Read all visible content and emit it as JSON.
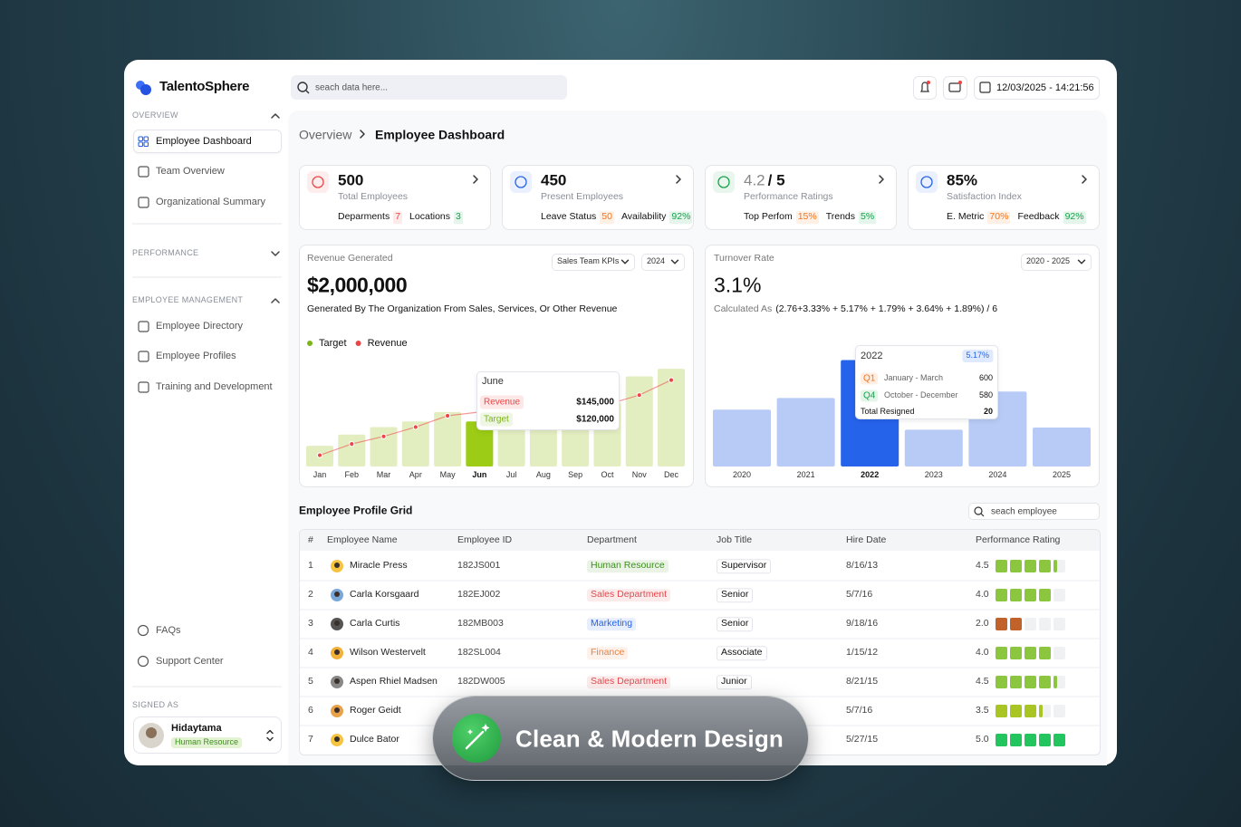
{
  "app": {
    "logo": "TalentoSphere",
    "search_placeholder": "seach data here...",
    "datetime": "12/03/2025 - 14:21:56"
  },
  "sidebar": {
    "sections": [
      {
        "title": "OVERVIEW",
        "items": [
          "Employee Dashboard",
          "Team Overview",
          "Organizational Summary"
        ]
      },
      {
        "title": "PERFORMANCE"
      },
      {
        "title": "EMPLOYEE MANAGEMENT",
        "items": [
          "Employee Directory",
          "Employee Profiles",
          "Training and Development"
        ]
      }
    ],
    "footer_items": [
      "FAQs",
      "Support Center"
    ],
    "signed_as_label": "SIGNED AS",
    "user": {
      "name": "Hidaytama",
      "role": "Human Resource"
    }
  },
  "breadcrumb": [
    "Overview",
    "Employee Dashboard"
  ],
  "kpis": [
    {
      "value": "500",
      "label": "Total Employees",
      "stats": [
        {
          "label": "Deparments",
          "value": "7",
          "color": "#ef4444"
        },
        {
          "label": "Locations",
          "value": "3",
          "color": "#16a34a"
        }
      ]
    },
    {
      "value": "450",
      "label": "Present Employees",
      "stats": [
        {
          "label": "Leave Status",
          "value": "50",
          "color": "#f97316"
        },
        {
          "label": "Availability",
          "value": "92%",
          "color": "#16a34a"
        }
      ]
    },
    {
      "value": "4.2",
      "suffix": "/ 5",
      "label": "Performance Ratings",
      "stats": [
        {
          "label": "Top Perfom",
          "value": "15%",
          "color": "#f97316"
        },
        {
          "label": "Trends",
          "value": "5%",
          "color": "#16a34a"
        }
      ]
    },
    {
      "value": "85%",
      "label": "Satisfaction Index",
      "stats": [
        {
          "label": "E. Metric",
          "value": "70%",
          "color": "#f97316"
        },
        {
          "label": "Feedback",
          "value": "92%",
          "color": "#16a34a"
        }
      ]
    }
  ],
  "chart_data": [
    {
      "type": "bar",
      "title": "Revenue Generated",
      "filters": [
        "Sales Team KPIs",
        "2024"
      ],
      "headline": "$2,000,000",
      "subtitle": "Generated By The Organization From Sales, Services, Or Other Revenue",
      "categories": [
        "Jan",
        "Feb",
        "Mar",
        "Apr",
        "May",
        "Jun",
        "Jul",
        "Aug",
        "Sep",
        "Oct",
        "Nov",
        "Dec"
      ],
      "series": [
        {
          "name": "Target",
          "mark": "bar",
          "color": "#7cb518",
          "colors": [
            "#e3eec0",
            "#e3eec0",
            "#e3eec0",
            "#e3eec0",
            "#e3eec0",
            "#9ccc16",
            "#e3eec0",
            "#e3eec0",
            "#e3eec0",
            "#e3eec0",
            "#e3eec0",
            "#e3eec0"
          ],
          "values": [
            55000,
            85000,
            105000,
            120000,
            145000,
            120000,
            150000,
            155000,
            160000,
            170000,
            240000,
            260000
          ]
        },
        {
          "name": "Revenue",
          "mark": "line",
          "color": "#ef4444",
          "values": [
            30000,
            60000,
            80000,
            105000,
            135000,
            145000,
            150000,
            155000,
            160000,
            165000,
            190000,
            230000
          ]
        }
      ],
      "ylim": [
        0,
        270000
      ],
      "tooltip": {
        "title": "June",
        "labels": [
          "$145,000",
          "$120,000"
        ]
      }
    },
    {
      "type": "bar",
      "title": "Turnover Rate",
      "filters": [
        "2020 - 2025"
      ],
      "headline": "3.1%",
      "subtitle_prefix": "Calculated As",
      "subtitle_formula": "(2.76+3.33% + 5.17% + 1.79% + 3.64% + 1.89%) / 6",
      "categories": [
        "2020",
        "2021",
        "2022",
        "2023",
        "2024",
        "2025"
      ],
      "values": [
        2.76,
        3.33,
        5.17,
        1.79,
        3.64,
        1.89
      ],
      "color": "#b7cbf6",
      "colors": [
        "#b7cbf6",
        "#b7cbf6",
        "#2563eb",
        "#b7cbf6",
        "#b7cbf6",
        "#b7cbf6"
      ],
      "ylim": [
        0,
        5.5
      ],
      "tooltip": {
        "title": "2022",
        "badge": "5.17%",
        "rows": [
          {
            "quarter": "Q1",
            "period": "January - March",
            "value": "600",
            "color": "#f97316"
          },
          {
            "quarter": "Q4",
            "period": "October - December",
            "value": "580",
            "color": "#16a34a"
          }
        ],
        "total_label": "Total Resigned",
        "total_value": "20"
      }
    }
  ],
  "table": {
    "title": "Employee Profile Grid",
    "search_placeholder": "seach employee",
    "columns": [
      "#",
      "Employee Name",
      "Employee ID",
      "Department",
      "Job Title",
      "Hire Date",
      "Performance Rating"
    ],
    "rows": [
      {
        "no": "1",
        "name": "Miracle Press",
        "id": "182JS001",
        "department": "Human Resource",
        "department_color": "#3f8f1f",
        "job_title": "Supervisor",
        "hire_date": "8/16/13",
        "rating": "4.5",
        "rating_color": "#8cc63f"
      },
      {
        "no": "2",
        "name": "Carla Korsgaard",
        "id": "182EJ002",
        "department": "Sales Department",
        "department_color": "#e5484d",
        "job_title": "Senior",
        "hire_date": "5/7/16",
        "rating": "4.0",
        "rating_color": "#8cc63f"
      },
      {
        "no": "3",
        "name": "Carla Curtis",
        "id": "182MB003",
        "department": "Marketing",
        "department_color": "#2563eb",
        "job_title": "Senior",
        "hire_date": "9/18/16",
        "rating": "2.0",
        "rating_color": "#c2622b"
      },
      {
        "no": "4",
        "name": "Wilson Westervelt",
        "id": "182SL004",
        "department": "Finance",
        "department_color": "#f0803c",
        "job_title": "Associate",
        "hire_date": "1/15/12",
        "rating": "4.0",
        "rating_color": "#8cc63f"
      },
      {
        "no": "5",
        "name": "Aspen Rhiel Madsen",
        "id": "182DW005",
        "department": "Sales Department",
        "department_color": "#e5484d",
        "job_title": "Junior",
        "hire_date": "8/21/15",
        "rating": "4.5",
        "rating_color": "#8cc63f"
      },
      {
        "no": "6",
        "name": "Roger Geidt",
        "hire_date": "5/7/16",
        "rating": "3.5",
        "rating_color": "#a8c523"
      },
      {
        "no": "7",
        "name": "Dulce Bator",
        "hire_date": "5/27/15",
        "rating": "5.0",
        "rating_color": "#22c55e"
      }
    ]
  },
  "overlay": {
    "text": "Clean & Modern Design"
  }
}
